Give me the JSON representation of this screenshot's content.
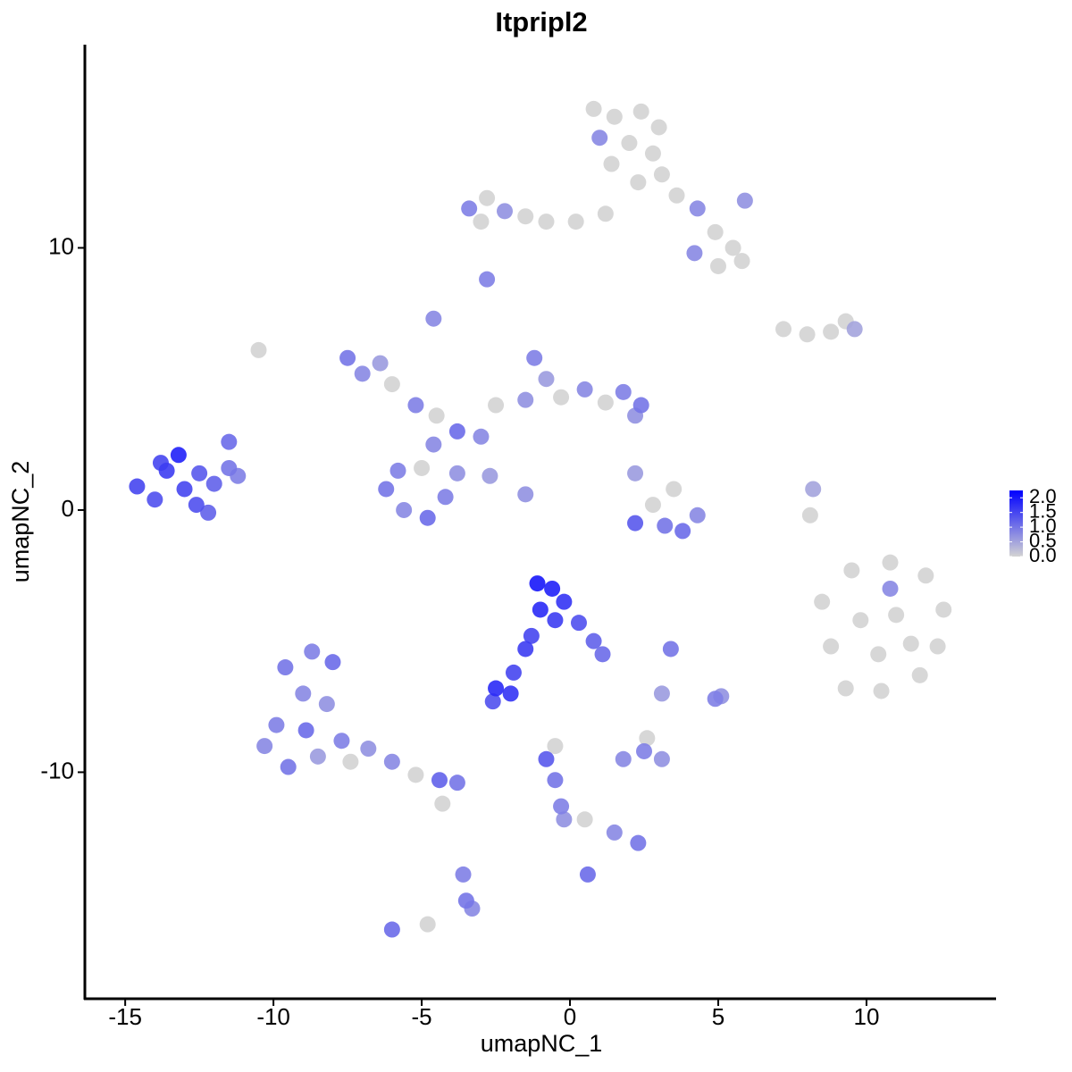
{
  "chart_data": {
    "type": "scatter",
    "title": "Itpripl2",
    "x_label": "umapNC_1",
    "y_label": "umapNC_2",
    "xlim": [
      -16.36,
      14.37
    ],
    "ylim": [
      -18.64,
      17.75
    ],
    "xticks": [
      -15,
      -10,
      -5,
      0,
      5,
      10
    ],
    "yticks": [
      -10,
      0,
      10
    ],
    "color_scale": [
      "#d3d3d3",
      "#0000ff"
    ],
    "color_lim": [
      0,
      2.25
    ],
    "color_ticks": [
      {
        "value": 0,
        "label": "0.0"
      },
      0.5,
      {
        "value": 1,
        "label": "1.0"
      },
      1.5,
      {
        "value": 2,
        "label": "2.0"
      }
    ],
    "x": [
      0.8,
      1.5,
      2.4,
      3.0,
      1.0,
      2.0,
      2.8,
      1.4,
      3.1,
      2.3,
      3.6,
      4.3,
      4.9,
      5.5,
      5.0,
      4.2,
      5.8,
      5.9,
      -3.4,
      -2.8,
      -2.2,
      -1.5,
      -0.8,
      0.2,
      1.2,
      -3.0,
      -2.8,
      7.2,
      8.0,
      8.8,
      9.6,
      9.3,
      -7.5,
      -7.0,
      -6.4,
      -6.0,
      -5.2,
      -4.5,
      -4.6,
      -3.8,
      -3.0,
      -2.5,
      -1.5,
      -1.2,
      -0.8,
      -0.3,
      0.5,
      1.2,
      1.8,
      2.4,
      2.2,
      -6.2,
      -5.6,
      -4.8,
      -4.2,
      -3.8,
      -5.0,
      -5.8,
      -4.6,
      -2.7,
      -1.5,
      -14.6,
      -14.0,
      -13.6,
      -13.2,
      -13.0,
      -12.5,
      -12.6,
      -12.0,
      -11.5,
      -11.2,
      -11.5,
      -13.8,
      -12.2,
      2.2,
      2.8,
      3.2,
      3.8,
      2.2,
      4.3,
      3.5,
      8.5,
      9.5,
      10.8,
      12.0,
      12.6,
      12.4,
      11.8,
      10.5,
      9.3,
      8.8,
      9.8,
      11.0,
      10.4,
      11.5,
      10.8,
      8.1,
      8.2,
      -1.1,
      -0.6,
      -0.2,
      -1.0,
      -0.5,
      0.3,
      0.8,
      1.1,
      -1.3,
      -1.5,
      -1.9,
      -2.5,
      -2.0,
      -2.6,
      -9.6,
      -8.7,
      -8.0,
      -9.0,
      -8.2,
      -9.9,
      -10.3,
      -9.5,
      -8.5,
      -7.7,
      -7.4,
      -6.8,
      -6.0,
      -5.2,
      -4.4,
      -3.8,
      -8.9,
      -4.3,
      -3.6,
      -3.5,
      -3.3,
      -4.8,
      -6.0,
      -0.8,
      -0.5,
      -0.3,
      -0.2,
      0.5,
      1.5,
      2.3,
      0.6,
      1.8,
      2.5,
      3.1,
      2.6,
      3.1,
      3.4,
      4.9,
      5.1,
      -10.5,
      -0.5
    ],
    "y": [
      15.3,
      15.0,
      15.2,
      14.6,
      14.2,
      14.0,
      13.6,
      13.2,
      12.8,
      12.5,
      12.0,
      11.5,
      10.6,
      10.0,
      9.3,
      9.8,
      9.5,
      11.8,
      11.5,
      11.9,
      11.4,
      11.2,
      11.0,
      11.0,
      11.3,
      11.0,
      8.8,
      6.9,
      6.7,
      6.8,
      6.9,
      7.2,
      5.8,
      5.2,
      5.6,
      4.8,
      4.0,
      3.6,
      7.3,
      3.0,
      2.8,
      4.0,
      4.2,
      5.8,
      5.0,
      4.3,
      4.6,
      4.1,
      4.5,
      4.0,
      3.6,
      0.8,
      0.0,
      -0.3,
      0.5,
      1.4,
      1.6,
      1.5,
      2.5,
      1.3,
      0.6,
      0.9,
      0.4,
      1.5,
      2.1,
      0.8,
      1.4,
      0.2,
      1.0,
      1.6,
      1.3,
      2.6,
      1.8,
      -0.1,
      1.4,
      0.2,
      -0.6,
      -0.8,
      -0.5,
      -0.2,
      0.8,
      -3.5,
      -2.3,
      -2.0,
      -2.5,
      -3.8,
      -5.2,
      -6.3,
      -6.9,
      -6.8,
      -5.2,
      -4.2,
      -4.0,
      -5.5,
      -5.1,
      -3.0,
      -0.2,
      0.8,
      -2.8,
      -3.0,
      -3.5,
      -3.8,
      -4.2,
      -4.3,
      -5.0,
      -5.5,
      -4.8,
      -5.3,
      -6.2,
      -6.8,
      -7.0,
      -7.3,
      -6.0,
      -5.4,
      -5.8,
      -7.0,
      -7.4,
      -8.2,
      -9.0,
      -9.8,
      -9.4,
      -8.8,
      -9.6,
      -9.1,
      -9.6,
      -10.1,
      -10.3,
      -10.4,
      -8.4,
      -11.2,
      -13.9,
      -14.9,
      -15.2,
      -15.8,
      -16.0,
      -9.5,
      -10.3,
      -11.3,
      -11.8,
      -11.8,
      -12.3,
      -12.7,
      -13.9,
      -9.5,
      -9.2,
      -9.5,
      -8.7,
      -7.0,
      -5.3,
      -7.2,
      -7.1,
      6.1,
      -9.0
    ],
    "color_values": [
      0,
      0,
      0,
      0,
      0.8,
      0,
      0,
      0,
      0,
      0,
      0,
      0.8,
      0,
      0,
      0,
      0.8,
      0,
      0.7,
      0.9,
      0,
      0.7,
      0,
      0,
      0,
      0,
      0,
      0.9,
      0,
      0,
      0,
      0.5,
      0,
      1.0,
      0.8,
      0.6,
      0,
      0.9,
      0,
      0.8,
      1.1,
      0.8,
      0,
      0.7,
      0.9,
      0.6,
      0,
      0.8,
      0,
      0.9,
      1.0,
      0.7,
      1.0,
      0.8,
      1.1,
      0.9,
      0.7,
      0,
      0.9,
      0.8,
      0.6,
      0.7,
      1.5,
      1.4,
      1.6,
      1.9,
      1.5,
      1.3,
      1.4,
      1.2,
      1.0,
      0.9,
      1.1,
      1.5,
      1.2,
      0.6,
      0,
      1.0,
      1.1,
      1.3,
      0.8,
      0,
      0,
      0,
      0,
      0,
      0,
      0,
      0,
      0,
      0,
      0,
      0,
      0,
      0,
      0,
      0.8,
      0,
      0.5,
      2.0,
      1.9,
      1.7,
      1.8,
      1.6,
      1.4,
      1.2,
      1.1,
      1.5,
      1.6,
      1.5,
      1.8,
      1.7,
      1.4,
      1.0,
      0.9,
      1.1,
      0.8,
      0.7,
      0.9,
      0.8,
      1.0,
      0.6,
      0.9,
      0,
      0.7,
      0.8,
      0,
      1.2,
      1.0,
      1.1,
      0,
      0.9,
      1.0,
      0.8,
      0,
      1.1,
      1.3,
      1.0,
      0.9,
      0.7,
      0,
      0.8,
      1.0,
      1.1,
      0.8,
      0.9,
      0.7,
      0,
      0.6,
      1.0,
      0.9,
      0.7,
      0,
      0
    ]
  }
}
